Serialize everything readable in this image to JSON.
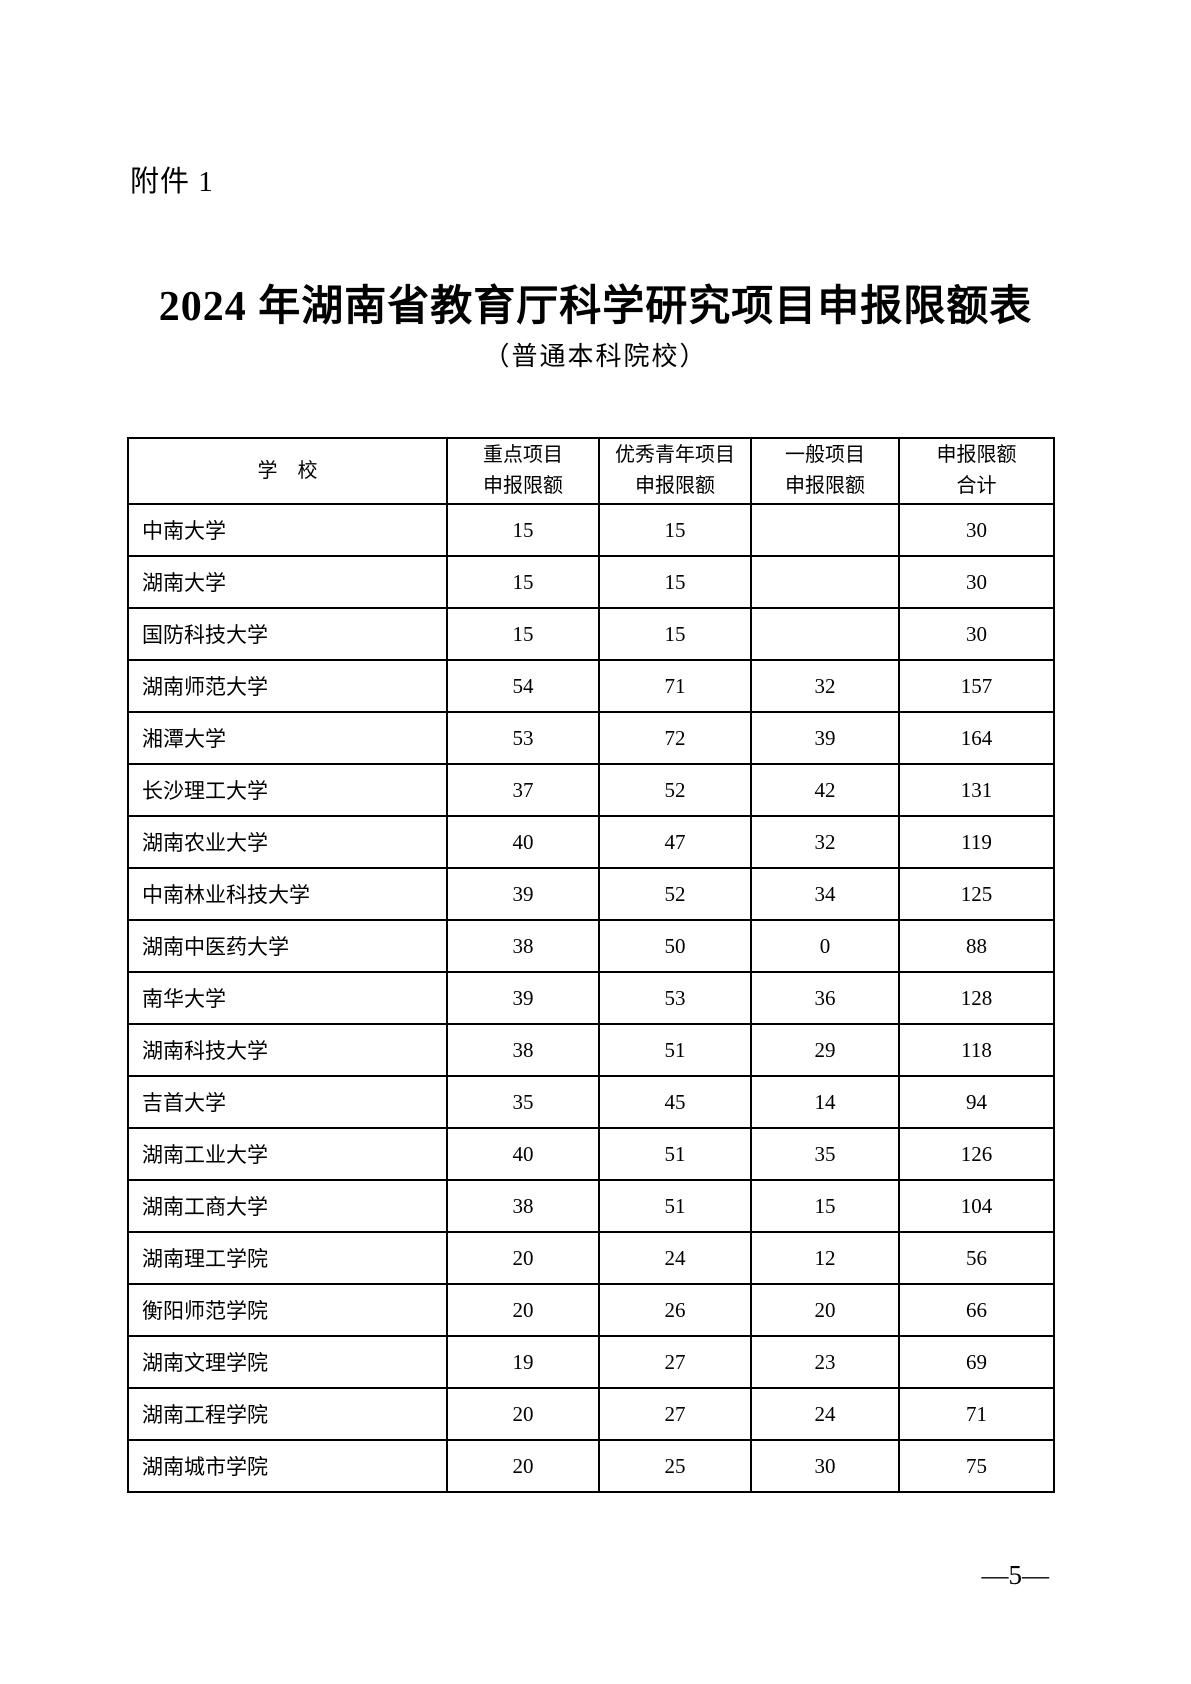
{
  "attachment_label": "附件 1",
  "title": "2024 年湖南省教育厅科学研究项目申报限额表",
  "subtitle": "（普通本科院校）",
  "page_number": "—5—",
  "table": {
    "header_columns": [
      {
        "lines": [
          "学　校"
        ]
      },
      {
        "lines": [
          "重点项目",
          "申报限额"
        ]
      },
      {
        "lines": [
          "优秀青年项目",
          "申报限额"
        ]
      },
      {
        "lines": [
          "一般项目",
          "申报限额"
        ]
      },
      {
        "lines": [
          "申报限额",
          "合计"
        ]
      }
    ],
    "rows": [
      {
        "school": "中南大学",
        "key_project": "15",
        "youth_project": "15",
        "general_project": "",
        "total": "30"
      },
      {
        "school": "湖南大学",
        "key_project": "15",
        "youth_project": "15",
        "general_project": "",
        "total": "30"
      },
      {
        "school": "国防科技大学",
        "key_project": "15",
        "youth_project": "15",
        "general_project": "",
        "total": "30"
      },
      {
        "school": "湖南师范大学",
        "key_project": "54",
        "youth_project": "71",
        "general_project": "32",
        "total": "157"
      },
      {
        "school": "湘潭大学",
        "key_project": "53",
        "youth_project": "72",
        "general_project": "39",
        "total": "164"
      },
      {
        "school": "长沙理工大学",
        "key_project": "37",
        "youth_project": "52",
        "general_project": "42",
        "total": "131"
      },
      {
        "school": "湖南农业大学",
        "key_project": "40",
        "youth_project": "47",
        "general_project": "32",
        "total": "119"
      },
      {
        "school": "中南林业科技大学",
        "key_project": "39",
        "youth_project": "52",
        "general_project": "34",
        "total": "125"
      },
      {
        "school": "湖南中医药大学",
        "key_project": "38",
        "youth_project": "50",
        "general_project": "0",
        "total": "88"
      },
      {
        "school": "南华大学",
        "key_project": "39",
        "youth_project": "53",
        "general_project": "36",
        "total": "128"
      },
      {
        "school": "湖南科技大学",
        "key_project": "38",
        "youth_project": "51",
        "general_project": "29",
        "total": "118"
      },
      {
        "school": "吉首大学",
        "key_project": "35",
        "youth_project": "45",
        "general_project": "14",
        "total": "94"
      },
      {
        "school": "湖南工业大学",
        "key_project": "40",
        "youth_project": "51",
        "general_project": "35",
        "total": "126"
      },
      {
        "school": "湖南工商大学",
        "key_project": "38",
        "youth_project": "51",
        "general_project": "15",
        "total": "104"
      },
      {
        "school": "湖南理工学院",
        "key_project": "20",
        "youth_project": "24",
        "general_project": "12",
        "total": "56"
      },
      {
        "school": "衡阳师范学院",
        "key_project": "20",
        "youth_project": "26",
        "general_project": "20",
        "total": "66"
      },
      {
        "school": "湖南文理学院",
        "key_project": "19",
        "youth_project": "27",
        "general_project": "23",
        "total": "69"
      },
      {
        "school": "湖南工程学院",
        "key_project": "20",
        "youth_project": "27",
        "general_project": "24",
        "total": "71"
      },
      {
        "school": "湖南城市学院",
        "key_project": "20",
        "youth_project": "25",
        "general_project": "30",
        "total": "75"
      }
    ]
  }
}
